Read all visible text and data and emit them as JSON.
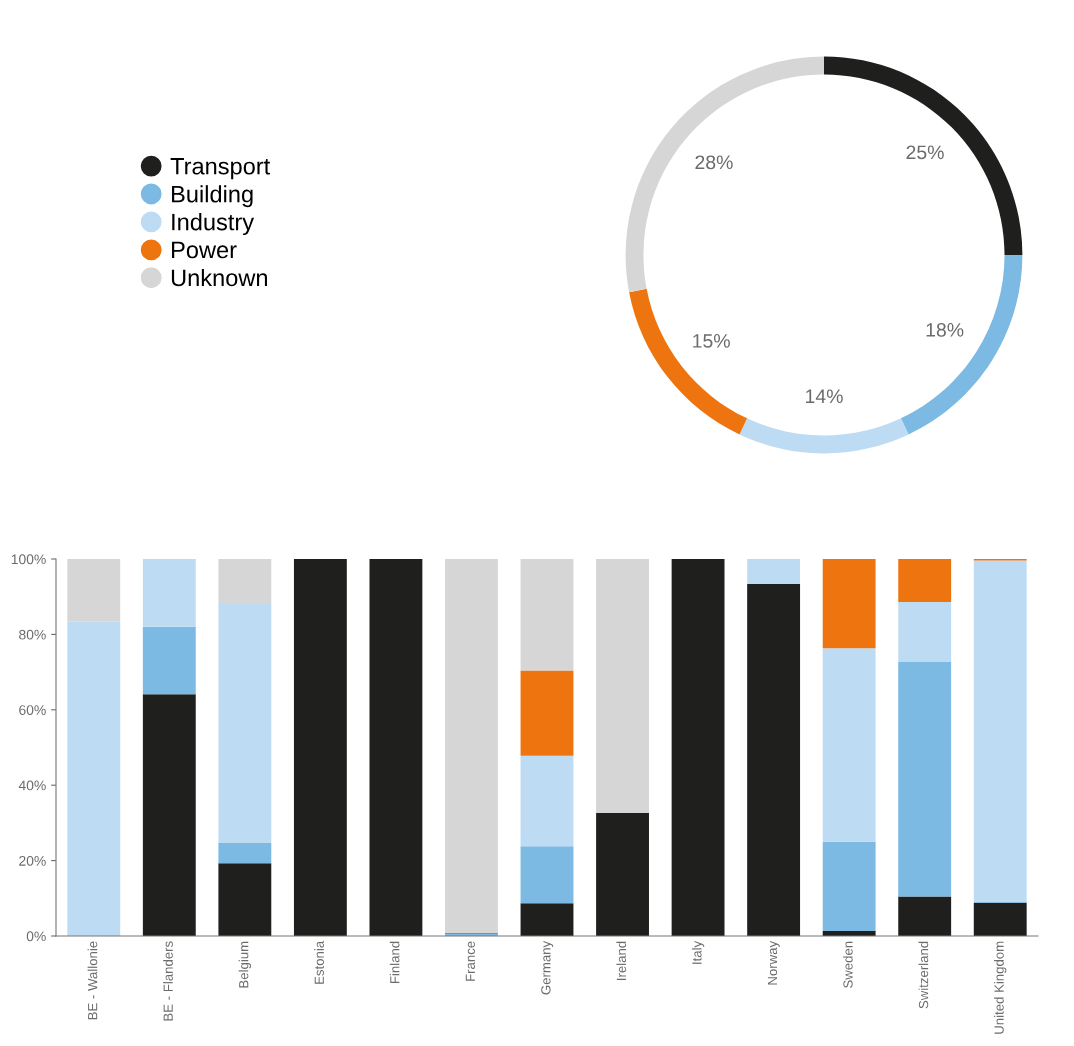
{
  "chart_data": [
    {
      "type": "donut",
      "categories": [
        "Transport",
        "Building",
        "Industry",
        "Power",
        "Unknown"
      ],
      "values": [
        25,
        18,
        14,
        15,
        28
      ],
      "colors": [
        "#1f201e",
        "#7cb9e3",
        "#bddcf4",
        "#ee7410",
        "#d6d6d6"
      ],
      "value_labels": [
        "25%",
        "18%",
        "14%",
        "15%",
        "28%"
      ],
      "legend": "left"
    },
    {
      "type": "bar",
      "stacked": true,
      "categories": [
        "BE - Wallonie",
        "BE - Flanders",
        "Belgium",
        "Estonia",
        "Finland",
        "France",
        "Germany",
        "Ireland",
        "Italy",
        "Norway",
        "Sweden",
        "Switzerland",
        "United Kingdom"
      ],
      "series": [
        {
          "color": "#1f201e",
          "values": [
            0,
            64.1,
            19.3,
            100,
            100,
            0,
            8.7,
            32.6,
            100,
            93.4,
            1.3,
            10.5,
            8.8
          ]
        },
        {
          "color": "#7cb9e3",
          "values": [
            0,
            17.9,
            5.4,
            0,
            0,
            0.5,
            15.1,
            0,
            0,
            0,
            23.7,
            62.2,
            0.2
          ]
        },
        {
          "color": "#bddcf4",
          "values": [
            83.4,
            18.0,
            63.6,
            0,
            0,
            0,
            24.0,
            0,
            0,
            6.6,
            51.3,
            15.9,
            90.6
          ]
        },
        {
          "color": "#ee7410",
          "values": [
            0,
            0,
            0,
            0,
            0,
            0.3,
            22.6,
            0,
            0,
            0,
            23.7,
            11.4,
            0.4
          ]
        },
        {
          "color": "#d6d6d6",
          "values": [
            16.6,
            0,
            11.7,
            0,
            0,
            99.2,
            29.6,
            67.4,
            0,
            0,
            0,
            0,
            0
          ]
        }
      ],
      "ylim": [
        0,
        100
      ],
      "yticks": [
        {
          "value": 0,
          "label": "0%"
        },
        {
          "value": 20,
          "label": "20%"
        },
        {
          "value": 40,
          "label": "40%"
        },
        {
          "value": 60,
          "label": "60%"
        },
        {
          "value": 80,
          "label": "80%"
        },
        {
          "value": 100,
          "label": "100%"
        }
      ],
      "grid": false,
      "legend": false
    }
  ]
}
